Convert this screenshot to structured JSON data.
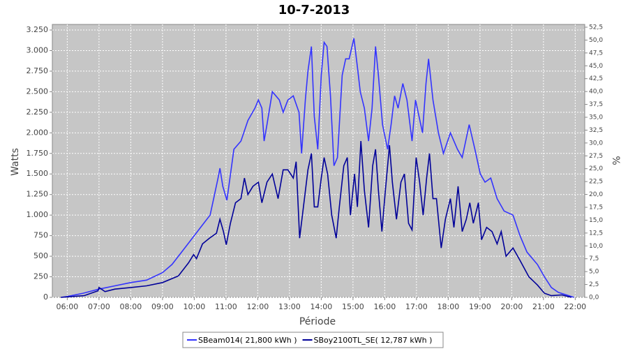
{
  "chart_data": {
    "type": "line",
    "title": "10-7-2013",
    "x_label": "Période",
    "y_label": "Watts",
    "y2_label": "%",
    "xlim": [
      5.53,
      22.3
    ],
    "xticks": [
      {
        "value": 6,
        "label": "06:00"
      },
      {
        "value": 7,
        "label": "07:00"
      },
      {
        "value": 8,
        "label": "08:00"
      },
      {
        "value": 9,
        "label": "09:00"
      },
      {
        "value": 10,
        "label": "10:00"
      },
      {
        "value": 11,
        "label": "11:00"
      },
      {
        "value": 12,
        "label": "12:00"
      },
      {
        "value": 13,
        "label": "13:00"
      },
      {
        "value": 14,
        "label": "14:00"
      },
      {
        "value": 15,
        "label": "15:00"
      },
      {
        "value": 16,
        "label": "16:00"
      },
      {
        "value": 17,
        "label": "17:00"
      },
      {
        "value": 18,
        "label": "18:00"
      },
      {
        "value": 19,
        "label": "19:00"
      },
      {
        "value": 20,
        "label": "20:00"
      },
      {
        "value": 21,
        "label": "21:00"
      },
      {
        "value": 22,
        "label": "22:00"
      }
    ],
    "ylim": [
      0,
      3318
    ],
    "yticks": [
      0,
      250,
      500,
      750,
      {
        "value": 1000,
        "label": "1.000"
      },
      {
        "value": 1250,
        "label": "1.250"
      },
      {
        "value": 1500,
        "label": "1.500"
      },
      {
        "value": 1750,
        "label": "1.750"
      },
      {
        "value": 2000,
        "label": "2.000"
      },
      {
        "value": 2250,
        "label": "2.250"
      },
      {
        "value": 2500,
        "label": "2.500"
      },
      {
        "value": 2750,
        "label": "2.750"
      },
      {
        "value": 3000,
        "label": "3.000"
      },
      {
        "value": 3250,
        "label": "3.250"
      }
    ],
    "y2lim": [
      0,
      53.04
    ],
    "y2ticks": [
      {
        "value": 0,
        "label": "0,0"
      },
      {
        "value": 2.5,
        "label": "2,5"
      },
      {
        "value": 5,
        "label": "5,0"
      },
      {
        "value": 7.5,
        "label": "7,5"
      },
      {
        "value": 10,
        "label": "10,0"
      },
      {
        "value": 12.5,
        "label": "12,5"
      },
      {
        "value": 15,
        "label": "15,0"
      },
      {
        "value": 17.5,
        "label": "17,5"
      },
      {
        "value": 20,
        "label": "20,0"
      },
      {
        "value": 22.5,
        "label": "22,5"
      },
      {
        "value": 25,
        "label": "25,0"
      },
      {
        "value": 27.5,
        "label": "27,5"
      },
      {
        "value": 30,
        "label": "30,0"
      },
      {
        "value": 32.5,
        "label": "32,5"
      },
      {
        "value": 35,
        "label": "35,0"
      },
      {
        "value": 37.5,
        "label": "37,5"
      },
      {
        "value": 40,
        "label": "40,0"
      },
      {
        "value": 42.5,
        "label": "42,5"
      },
      {
        "value": 45,
        "label": "45,0"
      },
      {
        "value": 47.5,
        "label": "47,5"
      },
      {
        "value": 50,
        "label": "50,0"
      },
      {
        "value": 52.5,
        "label": "52,5"
      }
    ],
    "grid": true,
    "series": [
      {
        "name": "SBeam014( 21,800 kWh )",
        "color": "#3333ff",
        "x": [
          5.8,
          6.0,
          6.5,
          7.0,
          7.5,
          8.0,
          8.5,
          9.0,
          9.3,
          9.6,
          10.0,
          10.3,
          10.5,
          10.6,
          10.75,
          10.81,
          10.9,
          11.03,
          11.25,
          11.47,
          11.69,
          11.91,
          12.02,
          12.13,
          12.2,
          12.29,
          12.46,
          12.68,
          12.8,
          12.95,
          13.12,
          13.3,
          13.38,
          13.5,
          13.58,
          13.69,
          13.78,
          13.89,
          14.0,
          14.09,
          14.18,
          14.29,
          14.4,
          14.51,
          14.66,
          14.77,
          14.88,
          15.03,
          15.14,
          15.23,
          15.36,
          15.49,
          15.6,
          15.71,
          15.8,
          15.93,
          16.09,
          16.2,
          16.31,
          16.42,
          16.57,
          16.7,
          16.86,
          16.97,
          17.08,
          17.19,
          17.3,
          17.38,
          17.52,
          17.69,
          17.85,
          18.07,
          18.29,
          18.44,
          18.66,
          18.84,
          19.01,
          19.16,
          19.34,
          19.54,
          19.76,
          20.04,
          20.26,
          20.48,
          20.81,
          21.03,
          21.25,
          21.47,
          21.8,
          21.96
        ],
        "values": [
          0,
          10,
          50,
          100,
          140,
          180,
          210,
          300,
          400,
          550,
          750,
          900,
          1000,
          1180,
          1450,
          1570,
          1350,
          1180,
          1800,
          1900,
          2150,
          2300,
          2400,
          2300,
          1900,
          2100,
          2500,
          2400,
          2250,
          2400,
          2450,
          2250,
          1750,
          2400,
          2750,
          3050,
          2200,
          1800,
          2700,
          3100,
          3050,
          2450,
          1600,
          1700,
          2700,
          2900,
          2900,
          3150,
          2800,
          2500,
          2300,
          1900,
          2300,
          3050,
          2700,
          2100,
          1800,
          2100,
          2450,
          2300,
          2600,
          2400,
          1900,
          2400,
          2200,
          2000,
          2600,
          2900,
          2400,
          2000,
          1750,
          2000,
          1800,
          1700,
          2100,
          1800,
          1500,
          1400,
          1450,
          1200,
          1050,
          1000,
          750,
          550,
          400,
          250,
          120,
          60,
          20,
          0
        ]
      },
      {
        "name": "SBoy2100TL_SE( 12,787 kWh )",
        "color": "#000099",
        "x": [
          5.8,
          6.53,
          6.97,
          7.0,
          7.19,
          7.5,
          8.0,
          8.5,
          9.0,
          9.5,
          9.82,
          9.98,
          10.07,
          10.26,
          10.48,
          10.7,
          10.81,
          10.92,
          11.01,
          11.14,
          11.3,
          11.47,
          11.58,
          11.69,
          11.85,
          12.02,
          12.13,
          12.29,
          12.46,
          12.64,
          12.8,
          12.95,
          13.12,
          13.21,
          13.32,
          13.47,
          13.58,
          13.69,
          13.78,
          13.89,
          14.0,
          14.09,
          14.2,
          14.33,
          14.47,
          14.57,
          14.71,
          14.82,
          14.92,
          15.05,
          15.14,
          15.25,
          15.36,
          15.49,
          15.62,
          15.71,
          15.8,
          15.91,
          16.02,
          16.15,
          16.24,
          16.37,
          16.51,
          16.62,
          16.75,
          16.86,
          16.99,
          17.1,
          17.21,
          17.32,
          17.41,
          17.52,
          17.63,
          17.78,
          17.91,
          18.07,
          18.18,
          18.31,
          18.44,
          18.57,
          18.68,
          18.79,
          18.95,
          19.05,
          19.21,
          19.38,
          19.54,
          19.67,
          19.82,
          20.04,
          20.26,
          20.54,
          20.81,
          21.03,
          21.25,
          21.58,
          21.88
        ],
        "values": [
          0,
          20,
          80,
          120,
          70,
          100,
          120,
          140,
          180,
          260,
          420,
          520,
          470,
          650,
          720,
          780,
          950,
          800,
          640,
          900,
          1150,
          1200,
          1450,
          1250,
          1350,
          1400,
          1150,
          1400,
          1500,
          1200,
          1550,
          1550,
          1450,
          1650,
          720,
          1200,
          1550,
          1750,
          1100,
          1100,
          1450,
          1700,
          1500,
          1000,
          720,
          1100,
          1600,
          1700,
          1000,
          1500,
          1100,
          1900,
          1300,
          850,
          1600,
          1800,
          1300,
          800,
          1300,
          1850,
          1400,
          950,
          1400,
          1500,
          900,
          820,
          1700,
          1400,
          1000,
          1450,
          1750,
          1200,
          1200,
          600,
          950,
          1200,
          850,
          1350,
          800,
          950,
          1150,
          900,
          1150,
          700,
          850,
          800,
          650,
          800,
          500,
          600,
          450,
          250,
          150,
          50,
          20,
          30,
          0
        ]
      }
    ]
  }
}
